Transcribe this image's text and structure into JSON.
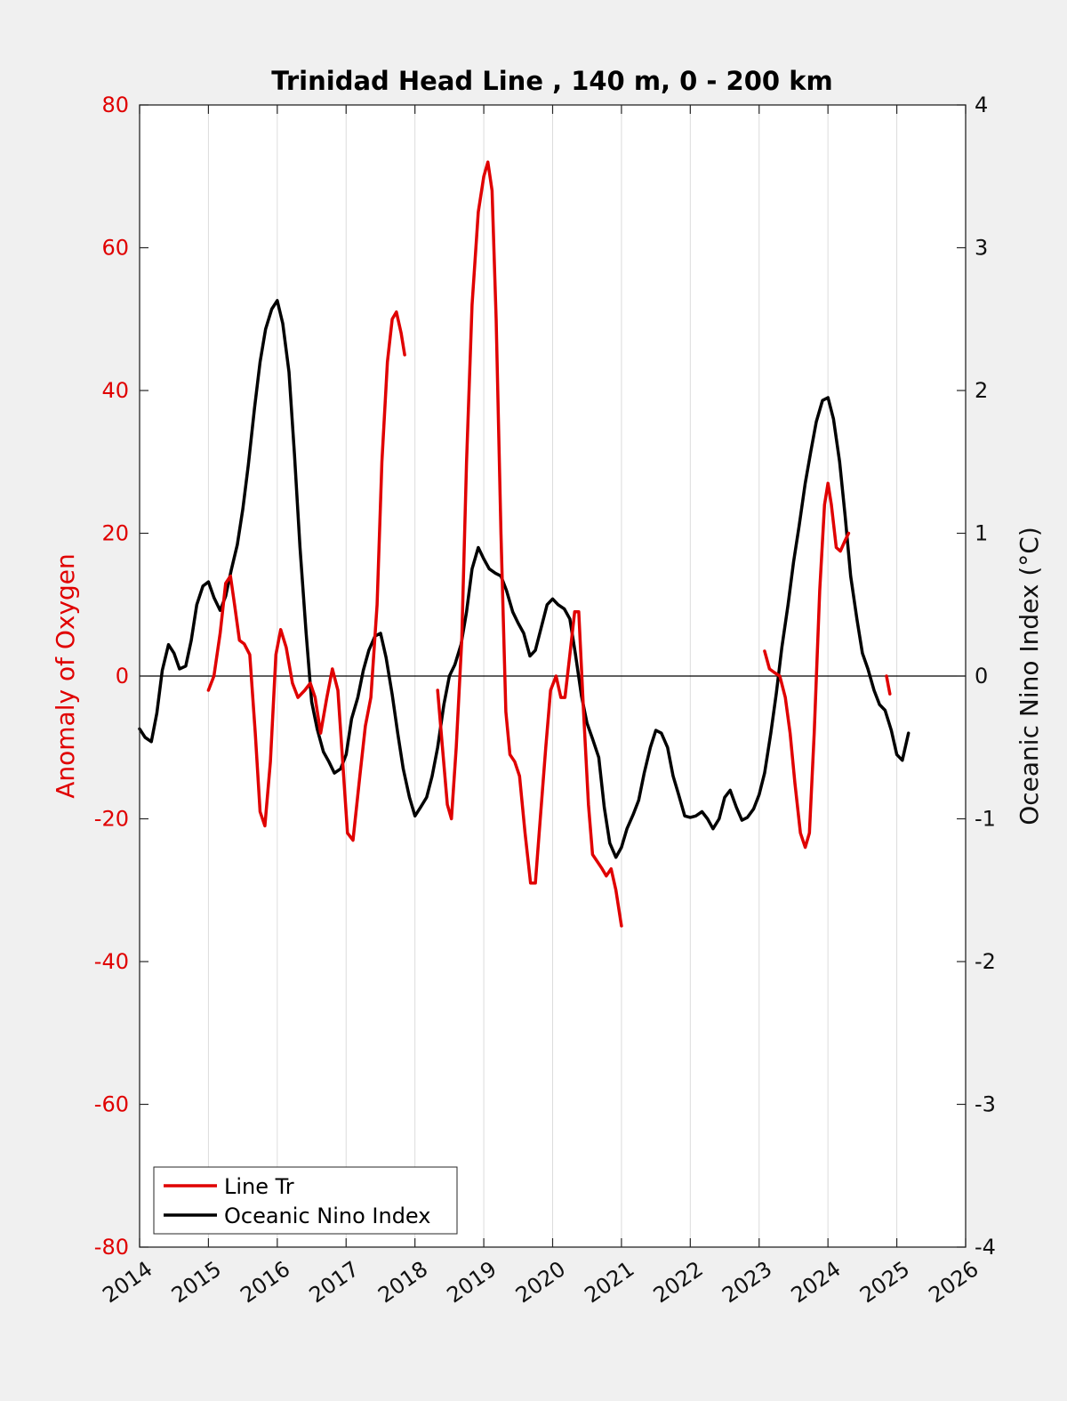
{
  "chart_data": {
    "type": "line",
    "title": "Trinidad Head Line , 140 m, 0 - 200 km",
    "xlim": [
      2014,
      2026
    ],
    "x_ticks": [
      "2014",
      "2015",
      "2016",
      "2017",
      "2018",
      "2019",
      "2020",
      "2021",
      "2022",
      "2023",
      "2024",
      "2025",
      "2026"
    ],
    "grid": "vertical",
    "zero_line": true,
    "legend_position": "bottom-left",
    "left_axis": {
      "label": "Anomaly of Oxygen",
      "ylim": [
        -80,
        80
      ],
      "ticks": [
        "80",
        "60",
        "40",
        "20",
        "0",
        "-20",
        "-40",
        "-60",
        "-80"
      ],
      "color": "#e00000"
    },
    "right_axis": {
      "label": "Oceanic Nino Index (°C)",
      "ylim": [
        -4,
        4
      ],
      "ticks": [
        "4",
        "3",
        "2",
        "1",
        "0",
        "-1",
        "-2",
        "-3",
        "-4"
      ],
      "color": "#000000"
    },
    "series": [
      {
        "name": "Line Tr",
        "axis": "left",
        "color": "#e00000",
        "segments": [
          [
            [
              2015.0,
              -2
            ],
            [
              2015.08,
              0
            ],
            [
              2015.17,
              6
            ],
            [
              2015.25,
              13
            ],
            [
              2015.32,
              14
            ],
            [
              2015.38,
              10
            ],
            [
              2015.45,
              5
            ],
            [
              2015.52,
              4.5
            ],
            [
              2015.6,
              3
            ],
            [
              2015.68,
              -8
            ],
            [
              2015.75,
              -19
            ],
            [
              2015.82,
              -21
            ],
            [
              2015.9,
              -12
            ],
            [
              2015.98,
              3
            ],
            [
              2016.05,
              6.5
            ],
            [
              2016.13,
              4
            ],
            [
              2016.22,
              -1
            ],
            [
              2016.3,
              -3
            ],
            [
              2016.4,
              -2
            ],
            [
              2016.48,
              -1
            ],
            [
              2016.55,
              -3
            ],
            [
              2016.63,
              -8
            ],
            [
              2016.72,
              -3
            ],
            [
              2016.8,
              1
            ],
            [
              2016.88,
              -2
            ],
            [
              2016.95,
              -12
            ],
            [
              2017.02,
              -22
            ],
            [
              2017.1,
              -23
            ],
            [
              2017.2,
              -14
            ],
            [
              2017.28,
              -7
            ],
            [
              2017.36,
              -3
            ],
            [
              2017.45,
              10
            ],
            [
              2017.52,
              30
            ],
            [
              2017.6,
              44
            ],
            [
              2017.67,
              50
            ],
            [
              2017.73,
              51
            ],
            [
              2017.8,
              48
            ],
            [
              2017.85,
              45
            ]
          ],
          [
            [
              2018.33,
              -2
            ],
            [
              2018.4,
              -10
            ],
            [
              2018.47,
              -18
            ],
            [
              2018.53,
              -20
            ],
            [
              2018.6,
              -10
            ],
            [
              2018.68,
              5
            ],
            [
              2018.75,
              30
            ],
            [
              2018.83,
              52
            ],
            [
              2018.92,
              65
            ],
            [
              2019.0,
              70
            ],
            [
              2019.06,
              72
            ],
            [
              2019.12,
              68
            ],
            [
              2019.18,
              50
            ],
            [
              2019.25,
              20
            ],
            [
              2019.32,
              -5
            ],
            [
              2019.38,
              -11
            ],
            [
              2019.45,
              -12
            ],
            [
              2019.52,
              -14
            ],
            [
              2019.6,
              -22
            ],
            [
              2019.68,
              -29
            ],
            [
              2019.75,
              -29
            ],
            [
              2019.82,
              -20
            ],
            [
              2019.9,
              -10
            ],
            [
              2019.97,
              -2
            ],
            [
              2020.05,
              0
            ],
            [
              2020.12,
              -3
            ],
            [
              2020.18,
              -3
            ],
            [
              2020.25,
              3
            ],
            [
              2020.32,
              9
            ],
            [
              2020.38,
              9
            ],
            [
              2020.45,
              -5
            ],
            [
              2020.52,
              -18
            ],
            [
              2020.58,
              -25
            ],
            [
              2020.65,
              -26
            ],
            [
              2020.72,
              -27
            ],
            [
              2020.78,
              -28
            ],
            [
              2020.85,
              -27
            ],
            [
              2020.92,
              -30
            ],
            [
              2021.0,
              -35
            ]
          ],
          [
            [
              2023.08,
              3.5
            ],
            [
              2023.15,
              1
            ],
            [
              2023.22,
              0.5
            ],
            [
              2023.3,
              0
            ],
            [
              2023.38,
              -3
            ],
            [
              2023.45,
              -8
            ],
            [
              2023.52,
              -15
            ],
            [
              2023.6,
              -22
            ],
            [
              2023.67,
              -24
            ],
            [
              2023.73,
              -22
            ],
            [
              2023.8,
              -8
            ],
            [
              2023.88,
              12
            ],
            [
              2023.95,
              24
            ],
            [
              2024.0,
              27
            ],
            [
              2024.05,
              24
            ],
            [
              2024.12,
              18
            ],
            [
              2024.18,
              17.5
            ],
            [
              2024.25,
              19
            ],
            [
              2024.3,
              20
            ]
          ],
          [
            [
              2024.85,
              0
            ],
            [
              2024.9,
              -2.5
            ]
          ]
        ]
      },
      {
        "name": "Oceanic Nino Index",
        "axis": "right",
        "color": "#000000",
        "segments": [
          [
            [
              2014.0,
              -0.37
            ],
            [
              2014.08,
              -0.43
            ],
            [
              2014.17,
              -0.46
            ],
            [
              2014.25,
              -0.26
            ],
            [
              2014.33,
              0.04
            ],
            [
              2014.42,
              0.22
            ],
            [
              2014.5,
              0.16
            ],
            [
              2014.58,
              0.05
            ],
            [
              2014.67,
              0.07
            ],
            [
              2014.75,
              0.25
            ],
            [
              2014.83,
              0.5
            ],
            [
              2014.92,
              0.63
            ],
            [
              2015.0,
              0.66
            ],
            [
              2015.08,
              0.55
            ],
            [
              2015.17,
              0.46
            ],
            [
              2015.25,
              0.56
            ],
            [
              2015.33,
              0.74
            ],
            [
              2015.42,
              0.92
            ],
            [
              2015.5,
              1.17
            ],
            [
              2015.58,
              1.48
            ],
            [
              2015.67,
              1.88
            ],
            [
              2015.75,
              2.2
            ],
            [
              2015.83,
              2.43
            ],
            [
              2015.92,
              2.57
            ],
            [
              2016.0,
              2.63
            ],
            [
              2016.08,
              2.47
            ],
            [
              2016.17,
              2.13
            ],
            [
              2016.25,
              1.55
            ],
            [
              2016.33,
              0.9
            ],
            [
              2016.42,
              0.3
            ],
            [
              2016.5,
              -0.18
            ],
            [
              2016.58,
              -0.37
            ],
            [
              2016.67,
              -0.53
            ],
            [
              2016.75,
              -0.6
            ],
            [
              2016.83,
              -0.68
            ],
            [
              2016.92,
              -0.65
            ],
            [
              2017.0,
              -0.55
            ],
            [
              2017.08,
              -0.3
            ],
            [
              2017.17,
              -0.15
            ],
            [
              2017.25,
              0.04
            ],
            [
              2017.33,
              0.18
            ],
            [
              2017.42,
              0.28
            ],
            [
              2017.5,
              0.3
            ],
            [
              2017.58,
              0.13
            ],
            [
              2017.67,
              -0.13
            ],
            [
              2017.75,
              -0.4
            ],
            [
              2017.83,
              -0.65
            ],
            [
              2017.92,
              -0.85
            ],
            [
              2018.0,
              -0.98
            ],
            [
              2018.08,
              -0.92
            ],
            [
              2018.17,
              -0.85
            ],
            [
              2018.25,
              -0.7
            ],
            [
              2018.33,
              -0.5
            ],
            [
              2018.42,
              -0.2
            ],
            [
              2018.5,
              0
            ],
            [
              2018.58,
              0.08
            ],
            [
              2018.67,
              0.22
            ],
            [
              2018.75,
              0.45
            ],
            [
              2018.83,
              0.75
            ],
            [
              2018.92,
              0.9
            ],
            [
              2019.0,
              0.82
            ],
            [
              2019.08,
              0.75
            ],
            [
              2019.17,
              0.72
            ],
            [
              2019.25,
              0.7
            ],
            [
              2019.33,
              0.6
            ],
            [
              2019.42,
              0.45
            ],
            [
              2019.5,
              0.37
            ],
            [
              2019.58,
              0.3
            ],
            [
              2019.67,
              0.14
            ],
            [
              2019.75,
              0.18
            ],
            [
              2019.83,
              0.33
            ],
            [
              2019.92,
              0.5
            ],
            [
              2020.0,
              0.54
            ],
            [
              2020.08,
              0.5
            ],
            [
              2020.17,
              0.47
            ],
            [
              2020.25,
              0.4
            ],
            [
              2020.33,
              0.16
            ],
            [
              2020.42,
              -0.14
            ],
            [
              2020.5,
              -0.33
            ],
            [
              2020.58,
              -0.44
            ],
            [
              2020.67,
              -0.57
            ],
            [
              2020.75,
              -0.92
            ],
            [
              2020.83,
              -1.17
            ],
            [
              2020.92,
              -1.27
            ],
            [
              2021.0,
              -1.2
            ],
            [
              2021.08,
              -1.07
            ],
            [
              2021.17,
              -0.97
            ],
            [
              2021.25,
              -0.87
            ],
            [
              2021.33,
              -0.68
            ],
            [
              2021.42,
              -0.5
            ],
            [
              2021.5,
              -0.38
            ],
            [
              2021.58,
              -0.4
            ],
            [
              2021.67,
              -0.5
            ],
            [
              2021.75,
              -0.7
            ],
            [
              2021.83,
              -0.83
            ],
            [
              2021.92,
              -0.98
            ],
            [
              2022.0,
              -0.99
            ],
            [
              2022.08,
              -0.98
            ],
            [
              2022.17,
              -0.95
            ],
            [
              2022.25,
              -1.0
            ],
            [
              2022.33,
              -1.07
            ],
            [
              2022.42,
              -1.0
            ],
            [
              2022.5,
              -0.85
            ],
            [
              2022.58,
              -0.8
            ],
            [
              2022.67,
              -0.92
            ],
            [
              2022.75,
              -1.01
            ],
            [
              2022.83,
              -0.99
            ],
            [
              2022.92,
              -0.93
            ],
            [
              2023.0,
              -0.83
            ],
            [
              2023.08,
              -0.68
            ],
            [
              2023.17,
              -0.4
            ],
            [
              2023.25,
              -0.12
            ],
            [
              2023.33,
              0.2
            ],
            [
              2023.42,
              0.5
            ],
            [
              2023.5,
              0.8
            ],
            [
              2023.58,
              1.05
            ],
            [
              2023.67,
              1.35
            ],
            [
              2023.75,
              1.57
            ],
            [
              2023.83,
              1.78
            ],
            [
              2023.92,
              1.93
            ],
            [
              2024.0,
              1.95
            ],
            [
              2024.08,
              1.8
            ],
            [
              2024.17,
              1.5
            ],
            [
              2024.25,
              1.12
            ],
            [
              2024.33,
              0.7
            ],
            [
              2024.42,
              0.4
            ],
            [
              2024.5,
              0.16
            ],
            [
              2024.58,
              0.05
            ],
            [
              2024.67,
              -0.1
            ],
            [
              2024.75,
              -0.2
            ],
            [
              2024.83,
              -0.24
            ],
            [
              2024.92,
              -0.38
            ],
            [
              2025.0,
              -0.55
            ],
            [
              2025.08,
              -0.59
            ],
            [
              2025.17,
              -0.4
            ]
          ]
        ]
      }
    ]
  }
}
